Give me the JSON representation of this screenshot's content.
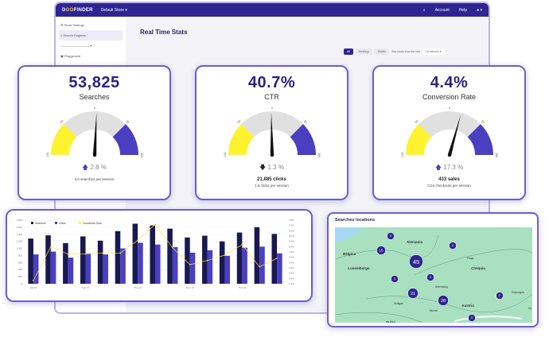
{
  "app": {
    "logo_pre": "D",
    "logo_mid": "OO",
    "logo_post": "FINDER",
    "store": "Default Store ▾",
    "search": "⌕",
    "account": "Account",
    "help": "Help",
    "user": "● ▾"
  },
  "sidebar": {
    "items": [
      {
        "label": "⚙ Store Settings"
      },
      {
        "label": "⌕ Search Engines ⌃"
      },
      {
        "label": "————————— ▾"
      },
      {
        "label": "▣ Playground"
      }
    ]
  },
  "page": {
    "title": "Real Time Stats",
    "filters": [
      "All",
      "Desktop",
      "Mobile"
    ],
    "totals_label": "See totals from the last",
    "totals_value": "15 minutes ▾"
  },
  "kpis": [
    {
      "value": "53,825",
      "label": "Searches",
      "change": "2.8 %",
      "direction": "up",
      "needle": 2.8,
      "detail": "",
      "sub": "4.0 searches per session"
    },
    {
      "value": "40.7%",
      "label": "CTR",
      "change": "1.3 %",
      "direction": "down",
      "needle": -1.3,
      "detail": "21,885 clicks",
      "sub": "1.6 clicks per session"
    },
    {
      "value": "4.4%",
      "label": "Conversion Rate",
      "change": "17.3 %",
      "direction": "up",
      "needle": 17.3,
      "detail": "433 sales",
      "sub": "0.04 checkouts per session"
    }
  ],
  "gauge_ticks": [
    "-100",
    "-50",
    "0",
    "50",
    "100"
  ],
  "colors": {
    "accent": "#2f2590",
    "yellow": "#fff22e",
    "blue": "#4a3fc0",
    "gray": "#e0e0e0",
    "navy": "#1a1850"
  },
  "chart_data": {
    "type": "bar",
    "categories": [
      "1",
      "2",
      "3",
      "4",
      "5",
      "6",
      "7",
      "8",
      "9",
      "10",
      "11",
      "12",
      "13",
      "14",
      "15"
    ],
    "x_tick_labels": [
      "Sat 06",
      "Sun 07",
      "Thu 12",
      "Mon 15",
      "Thu 18"
    ],
    "series": [
      {
        "name": "Searches",
        "values": [
          1280,
          1370,
          1150,
          1340,
          1220,
          1490,
          1700,
          1650,
          1560,
          1310,
          1360,
          1200,
          1450,
          1600,
          1410
        ]
      },
      {
        "name": "Clicks",
        "values": [
          830,
          910,
          740,
          860,
          830,
          1000,
          1160,
          1110,
          1040,
          880,
          950,
          790,
          1020,
          1050,
          860
        ]
      },
      {
        "name": "Conversion Rate",
        "axis": "right",
        "values": [
          1.8,
          5.0,
          4.3,
          4.3,
          4.4,
          4.4,
          5.6,
          7.1,
          4.9,
          3.3,
          3.7,
          4.2,
          5.2,
          3.1,
          3.9
        ]
      }
    ],
    "ylim": [
      0,
      1800
    ],
    "yticks": [
      "0",
      "200",
      "400",
      "600",
      "800",
      "1,000",
      "1,200",
      "1,400",
      "1,600",
      "1,800"
    ],
    "y2lim": [
      1.5,
      7.5
    ],
    "y2ticks": [
      "1.5%",
      "2.0%",
      "2.5%",
      "3.0%",
      "3.5%",
      "4.0%",
      "4.5%",
      "5.0%",
      "5.5%",
      "6.0%",
      "6.5%",
      "7.0%",
      "7.5%"
    ],
    "legend": "top-left",
    "grid": true
  },
  "map": {
    "title": "Searches locations",
    "clusters": [
      {
        "n": "8"
      },
      {
        "n": "15"
      },
      {
        "n": "45"
      },
      {
        "n": "8"
      },
      {
        "n": "3"
      },
      {
        "n": "5"
      },
      {
        "n": "21"
      },
      {
        "n": "28"
      },
      {
        "n": "5"
      },
      {
        "n": "5"
      }
    ],
    "places": [
      "Alemania",
      "Bélgica",
      "Luxemburgo",
      "Chequia",
      "Austria",
      "Suiza",
      "Praga",
      "Núremberg",
      "Stuttgart",
      "Múnich",
      "Eslovaquia",
      "Hu"
    ]
  }
}
